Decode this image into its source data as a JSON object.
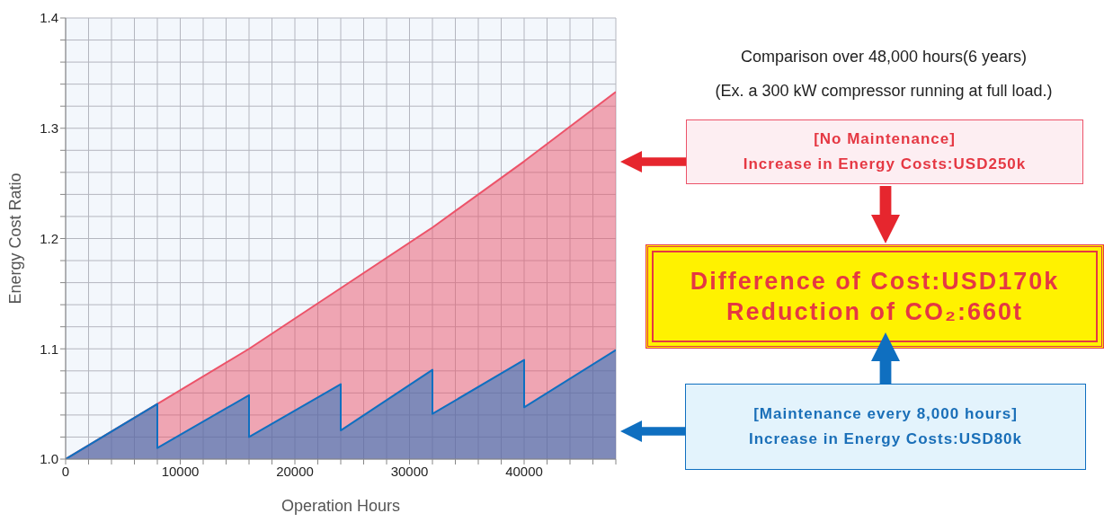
{
  "chart_data": {
    "type": "area",
    "xlabel": "Operation Hours",
    "ylabel": "Energy Cost Ratio",
    "xlim": [
      0,
      48000
    ],
    "ylim": [
      1.0,
      1.4
    ],
    "xticks": [
      0,
      {
        "value": 2000,
        "label": null
      },
      {
        "value": 4000,
        "label": null
      },
      {
        "value": 6000,
        "label": null
      },
      {
        "value": 8000,
        "label": null
      },
      10000,
      {
        "value": 12000,
        "label": null
      },
      {
        "value": 14000,
        "label": null
      },
      {
        "value": 16000,
        "label": null
      },
      {
        "value": 18000,
        "label": null
      },
      20000,
      {
        "value": 22000,
        "label": null
      },
      {
        "value": 24000,
        "label": null
      },
      {
        "value": 26000,
        "label": null
      },
      {
        "value": 28000,
        "label": null
      },
      30000,
      {
        "value": 32000,
        "label": null
      },
      {
        "value": 34000,
        "label": null
      },
      {
        "value": 36000,
        "label": null
      },
      {
        "value": 38000,
        "label": null
      },
      40000,
      {
        "value": 42000,
        "label": null
      },
      {
        "value": 44000,
        "label": null
      },
      {
        "value": 46000,
        "label": null
      },
      {
        "value": 48000,
        "label": null
      }
    ],
    "yticks": [
      {
        "value": 1.0,
        "label": "1.0"
      },
      {
        "value": 1.02,
        "label": null
      },
      {
        "value": 1.04,
        "label": null
      },
      {
        "value": 1.06,
        "label": null
      },
      {
        "value": 1.08,
        "label": null
      },
      {
        "value": 1.1,
        "label": "1.1"
      },
      {
        "value": 1.12,
        "label": null
      },
      {
        "value": 1.14,
        "label": null
      },
      {
        "value": 1.16,
        "label": null
      },
      {
        "value": 1.18,
        "label": null
      },
      {
        "value": 1.2,
        "label": "1.2"
      },
      {
        "value": 1.22,
        "label": null
      },
      {
        "value": 1.24,
        "label": null
      },
      {
        "value": 1.26,
        "label": null
      },
      {
        "value": 1.28,
        "label": null
      },
      {
        "value": 1.3,
        "label": "1.3"
      },
      {
        "value": 1.32,
        "label": null
      },
      {
        "value": 1.34,
        "label": null
      },
      {
        "value": 1.36,
        "label": null
      },
      {
        "value": 1.38,
        "label": null
      },
      {
        "value": 1.4,
        "label": "1.4"
      }
    ],
    "grid": true,
    "series": [
      {
        "color": "#ec5369",
        "x": [
          0,
          8000,
          16000,
          24000,
          32000,
          40000,
          48000
        ],
        "values": [
          1.0,
          1.05,
          1.1,
          1.155,
          1.21,
          1.27,
          1.333
        ]
      },
      {
        "color": "#0f6fc0",
        "x": [
          0,
          8000,
          8000,
          16000,
          16000,
          24000,
          24000,
          32000,
          32000,
          40000,
          40000,
          48000
        ],
        "values": [
          1.0,
          1.05,
          1.01,
          1.058,
          1.02,
          1.068,
          1.026,
          1.081,
          1.041,
          1.09,
          1.047,
          1.099
        ]
      }
    ],
    "annotations": [
      "Comparison over 48,000 hours(6 years)",
      "(Ex. a 300 kW compressor running at full load.)",
      "[No Maintenance]",
      "Increase in Energy Costs:USD250k",
      "Difference of Cost:USD170k",
      "Reduction of CO₂:660t",
      "[Maintenance every 8,000 hours]",
      "Increase in Energy Costs:USD80k"
    ]
  }
}
